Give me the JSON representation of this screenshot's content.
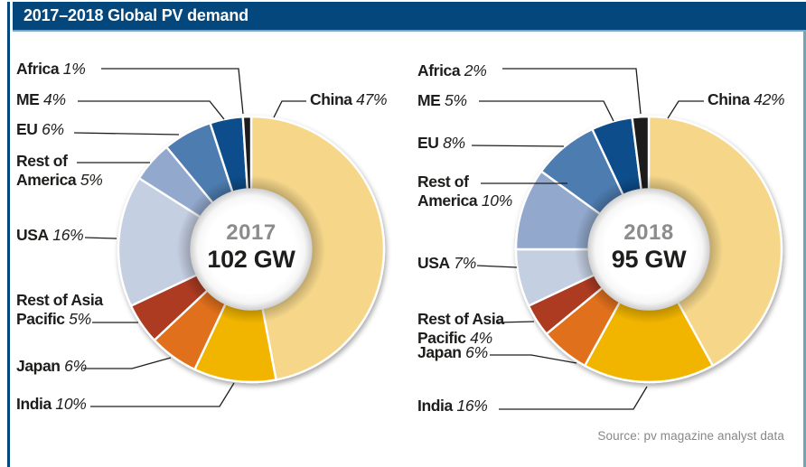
{
  "header": {
    "title": "2017–2018 Global PV demand"
  },
  "source_note": "Source: pv magazine analyst data",
  "colors": {
    "header_bar": "#04477d",
    "left_border": "#04477d",
    "header_underline": "#7ca6bb",
    "right_border": "#74a3b8",
    "leader_line": "#1d1d1b",
    "label_text": "#1d1d1b",
    "center_year": "#8c8c8c",
    "center_value": "#1d1d1b",
    "source_text": "#878787",
    "slice_gap_stroke": "#ffffff"
  },
  "chart_data": [
    {
      "type": "pie",
      "donut": true,
      "title": "2017",
      "center_label": "102 GW",
      "unit": "%",
      "legend_position": "callout-labels",
      "categories": [
        "China",
        "India",
        "Japan",
        "Rest of Asia Pacific",
        "USA",
        "Rest of America",
        "EU",
        "ME",
        "Africa"
      ],
      "values": [
        47,
        10,
        6,
        5,
        16,
        5,
        6,
        4,
        1
      ],
      "colors": [
        "#f6d78a",
        "#f1b500",
        "#e0701e",
        "#ac3a20",
        "#c5cfe2",
        "#92a9cd",
        "#4d7bb0",
        "#0d4e8b",
        "#1d1d1b"
      ]
    },
    {
      "type": "pie",
      "donut": true,
      "title": "2018",
      "center_label": "95 GW",
      "unit": "%",
      "legend_position": "callout-labels",
      "categories": [
        "China",
        "India",
        "Japan",
        "Rest of Asia Pacific",
        "USA",
        "Rest of America",
        "EU",
        "ME",
        "Africa"
      ],
      "values": [
        42,
        16,
        6,
        4,
        7,
        10,
        8,
        5,
        2
      ],
      "colors": [
        "#f6d78a",
        "#f1b500",
        "#e0701e",
        "#ac3a20",
        "#c5cfe2",
        "#92a9cd",
        "#4d7bb0",
        "#0d4e8b",
        "#1d1d1b"
      ]
    }
  ]
}
